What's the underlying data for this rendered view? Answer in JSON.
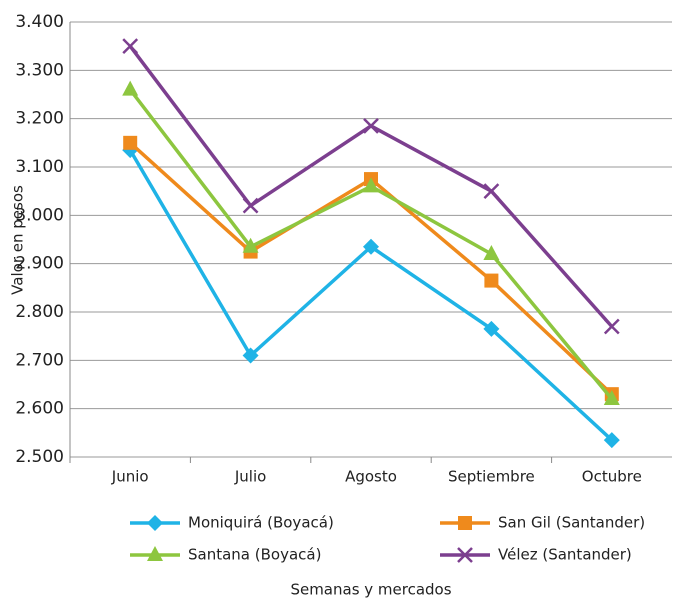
{
  "chart_data": {
    "type": "line",
    "x_label": "Semanas y mercados",
    "y_label": "Valor en pesos",
    "categories": [
      "Junio",
      "Julio",
      "Agosto",
      "Septiembre",
      "Octubre"
    ],
    "series": [
      {
        "name": "Moniquirá (Boyacá)",
        "color": "#1fb3e6",
        "marker": "diamond",
        "values": [
          3135,
          2710,
          2935,
          2765,
          2535
        ]
      },
      {
        "name": "San Gil (Santander)",
        "color": "#ef8a1c",
        "marker": "square",
        "values": [
          3150,
          2925,
          3075,
          2865,
          2630
        ]
      },
      {
        "name": "Santana (Boyacá)",
        "color": "#8dc63f",
        "marker": "triangle",
        "values": [
          3260,
          2935,
          3060,
          2920,
          2620
        ]
      },
      {
        "name": "Vélez (Santander)",
        "color": "#7c3f8f",
        "marker": "x",
        "values": [
          3350,
          3020,
          3185,
          3050,
          2770
        ]
      }
    ],
    "ylim": [
      2500,
      3400
    ],
    "yticks": [
      {
        "value": 2500,
        "label": "2.500"
      },
      {
        "value": 2600,
        "label": "2.600"
      },
      {
        "value": 2700,
        "label": "2.700"
      },
      {
        "value": 2800,
        "label": "2.800"
      },
      {
        "value": 2900,
        "label": "2.900"
      },
      {
        "value": 3000,
        "label": "3.000"
      },
      {
        "value": 3100,
        "label": "3.100"
      },
      {
        "value": 3200,
        "label": "3.200"
      },
      {
        "value": 3300,
        "label": "3.300"
      },
      {
        "value": 3400,
        "label": "3.400"
      }
    ],
    "grid": true
  }
}
